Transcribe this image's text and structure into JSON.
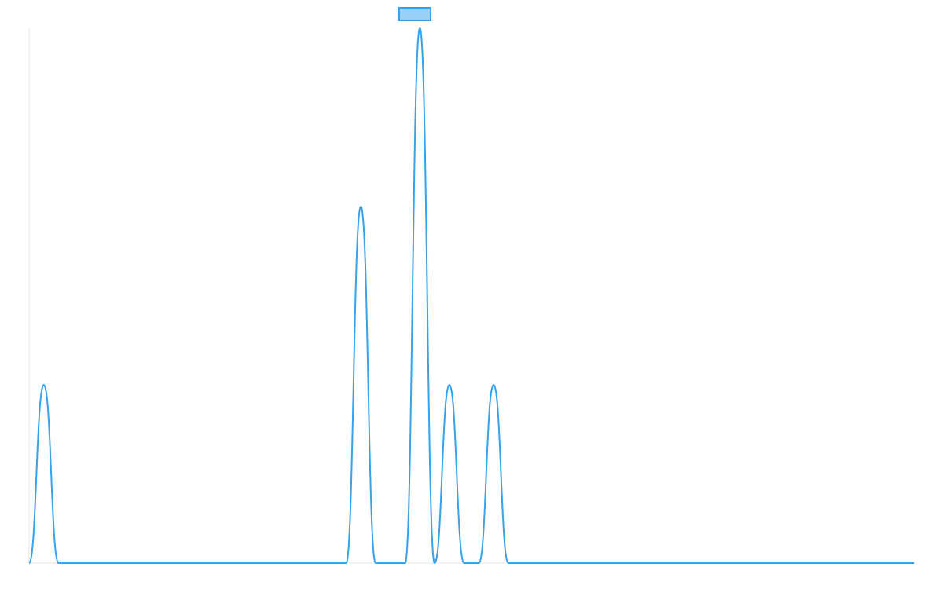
{
  "chart_data": {
    "type": "line",
    "title": "",
    "xlabel": "",
    "ylabel": "",
    "grid": false,
    "legend": {
      "placement": "top-center"
    },
    "xlim": [
      0,
      1200
    ],
    "ylim": [
      0,
      3
    ],
    "series": [
      {
        "name": "",
        "color": "#36a2eb",
        "fill_color": "#9ad0f5",
        "points": [
          {
            "x": 0,
            "y": 0
          },
          {
            "x": 20,
            "y": 1
          },
          {
            "x": 40,
            "y": 0
          },
          {
            "x": 430,
            "y": 0
          },
          {
            "x": 450,
            "y": 2
          },
          {
            "x": 470,
            "y": 0
          },
          {
            "x": 510,
            "y": 0
          },
          {
            "x": 530,
            "y": 3
          },
          {
            "x": 550,
            "y": 0
          },
          {
            "x": 570,
            "y": 1
          },
          {
            "x": 590,
            "y": 0
          },
          {
            "x": 610,
            "y": 0
          },
          {
            "x": 630,
            "y": 1
          },
          {
            "x": 650,
            "y": 0
          },
          {
            "x": 1200,
            "y": 0
          }
        ]
      }
    ]
  }
}
